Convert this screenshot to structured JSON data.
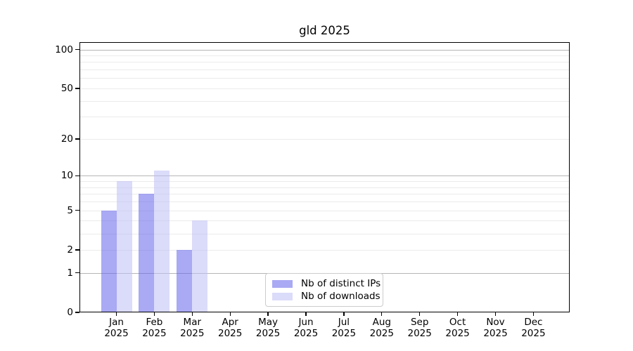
{
  "chart_data": {
    "type": "bar",
    "title": "gld 2025",
    "categories": [
      "Jan",
      "Feb",
      "Mar",
      "Apr",
      "May",
      "Jun",
      "Jul",
      "Aug",
      "Sep",
      "Oct",
      "Nov",
      "Dec"
    ],
    "year": "2025",
    "series": [
      {
        "name": "Nb of distinct IPs",
        "color": "#a9a9f4",
        "values": [
          5,
          7,
          2,
          0,
          0,
          0,
          0,
          0,
          0,
          0,
          0,
          0
        ]
      },
      {
        "name": "Nb of downloads",
        "color": "#dbdbfa",
        "values": [
          9,
          11,
          4,
          0,
          0,
          0,
          0,
          0,
          0,
          0,
          0,
          0
        ]
      }
    ],
    "xlabel": "",
    "ylabel": "",
    "yscale": "log1p",
    "ylim": [
      0,
      114
    ],
    "yticks": [
      0,
      1,
      2,
      5,
      10,
      20,
      50,
      100
    ],
    "major_gridlines": [
      1,
      10,
      100
    ],
    "minor_gridlines": [
      2,
      3,
      4,
      5,
      6,
      7,
      8,
      9,
      20,
      30,
      40,
      50,
      60,
      70,
      80,
      90
    ],
    "grid": "on",
    "legend_position": "lower center"
  }
}
